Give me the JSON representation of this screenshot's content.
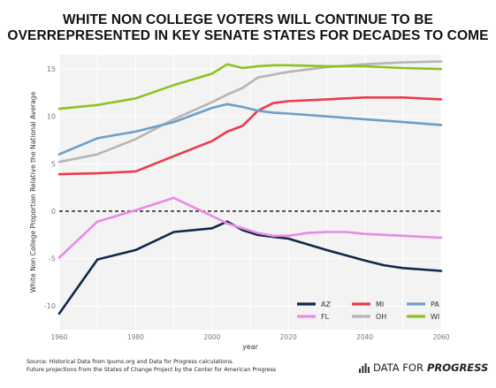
{
  "title_lines": [
    "WHITE NON COLLEGE VOTERS WILL CONTINUE TO BE",
    "OVERREPRESENTED IN KEY SENATE STATES FOR DECADES TO COME"
  ],
  "footer_lines": [
    "Source: Historical Data from Ipums.org and Data for Progress calculations.",
    "Future projections from the States of Change Project by the Center for American Progress"
  ],
  "brand": {
    "prefix": "DATA FOR",
    "emphasis": "PROGRESS"
  },
  "chart_data": {
    "type": "line",
    "title": "WHITE NON COLLEGE VOTERS WILL CONTINUE TO BE OVERREPRESENTED IN KEY SENATE STATES FOR DECADES TO COME",
    "xlabel": "year",
    "ylabel": "White Non College Proportion Relative the National Average",
    "xlim": [
      1960,
      2060
    ],
    "ylim": [
      -12.5,
      16.5
    ],
    "x_ticks": [
      1960,
      1980,
      2000,
      2020,
      2040,
      2060
    ],
    "y_ticks": [
      -10,
      -5,
      0,
      5,
      10,
      15
    ],
    "grid": true,
    "zero_line": "dashed",
    "legend_position": "bottom-right",
    "series": [
      {
        "name": "AZ",
        "color": "#0f2849",
        "points": [
          [
            1960,
            -10.8
          ],
          [
            1970,
            -5.1
          ],
          [
            1980,
            -4.1
          ],
          [
            1990,
            -2.2
          ],
          [
            2000,
            -1.8
          ],
          [
            2004,
            -1.1
          ],
          [
            2008,
            -2.0
          ],
          [
            2012,
            -2.5
          ],
          [
            2016,
            -2.7
          ],
          [
            2020,
            -2.9
          ],
          [
            2030,
            -4.1
          ],
          [
            2040,
            -5.2
          ],
          [
            2045,
            -5.7
          ],
          [
            2050,
            -6.0
          ],
          [
            2060,
            -6.3
          ]
        ]
      },
      {
        "name": "FL",
        "color": "#e88ae6",
        "points": [
          [
            1960,
            -4.9
          ],
          [
            1970,
            -1.1
          ],
          [
            1980,
            0.1
          ],
          [
            1990,
            1.4
          ],
          [
            2000,
            -0.5
          ],
          [
            2004,
            -1.3
          ],
          [
            2008,
            -1.8
          ],
          [
            2012,
            -2.3
          ],
          [
            2016,
            -2.6
          ],
          [
            2020,
            -2.6
          ],
          [
            2025,
            -2.3
          ],
          [
            2030,
            -2.2
          ],
          [
            2035,
            -2.2
          ],
          [
            2040,
            -2.4
          ],
          [
            2050,
            -2.6
          ],
          [
            2060,
            -2.8
          ]
        ]
      },
      {
        "name": "MI",
        "color": "#ea3c4c",
        "points": [
          [
            1960,
            3.9
          ],
          [
            1970,
            4.0
          ],
          [
            1980,
            4.2
          ],
          [
            1990,
            5.8
          ],
          [
            2000,
            7.4
          ],
          [
            2004,
            8.4
          ],
          [
            2008,
            9.0
          ],
          [
            2012,
            10.6
          ],
          [
            2016,
            11.4
          ],
          [
            2020,
            11.6
          ],
          [
            2030,
            11.8
          ],
          [
            2040,
            12.0
          ],
          [
            2050,
            12.0
          ],
          [
            2060,
            11.8
          ]
        ]
      },
      {
        "name": "OH",
        "color": "#b5b5b5",
        "points": [
          [
            1960,
            5.2
          ],
          [
            1970,
            6.0
          ],
          [
            1980,
            7.6
          ],
          [
            1990,
            9.7
          ],
          [
            2000,
            11.5
          ],
          [
            2004,
            12.3
          ],
          [
            2008,
            13.0
          ],
          [
            2012,
            14.1
          ],
          [
            2016,
            14.4
          ],
          [
            2020,
            14.7
          ],
          [
            2030,
            15.2
          ],
          [
            2040,
            15.5
          ],
          [
            2050,
            15.7
          ],
          [
            2060,
            15.8
          ]
        ]
      },
      {
        "name": "PA",
        "color": "#6e9dc7",
        "points": [
          [
            1960,
            6.0
          ],
          [
            1970,
            7.7
          ],
          [
            1980,
            8.4
          ],
          [
            1990,
            9.4
          ],
          [
            2000,
            10.9
          ],
          [
            2004,
            11.3
          ],
          [
            2008,
            11.0
          ],
          [
            2012,
            10.6
          ],
          [
            2016,
            10.4
          ],
          [
            2020,
            10.3
          ],
          [
            2030,
            10.0
          ],
          [
            2040,
            9.7
          ],
          [
            2050,
            9.4
          ],
          [
            2060,
            9.1
          ]
        ]
      },
      {
        "name": "WI",
        "color": "#8fc21f",
        "points": [
          [
            1960,
            10.8
          ],
          [
            1970,
            11.2
          ],
          [
            1980,
            11.9
          ],
          [
            1990,
            13.3
          ],
          [
            2000,
            14.5
          ],
          [
            2004,
            15.5
          ],
          [
            2008,
            15.1
          ],
          [
            2012,
            15.3
          ],
          [
            2016,
            15.4
          ],
          [
            2020,
            15.4
          ],
          [
            2030,
            15.3
          ],
          [
            2040,
            15.3
          ],
          [
            2050,
            15.1
          ],
          [
            2060,
            15.0
          ]
        ]
      }
    ]
  }
}
